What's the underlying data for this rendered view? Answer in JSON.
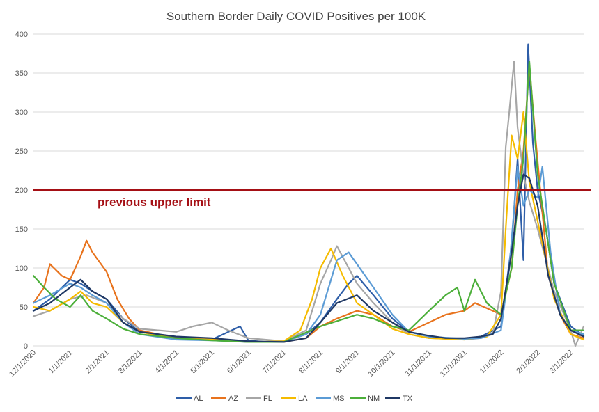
{
  "chart_data": {
    "type": "line",
    "title": "Southern Border Daily COVID Positives per 100K",
    "xlabel": "",
    "ylabel": "",
    "x_type": "date",
    "xlim": [
      "12/1/2020",
      "3/12/2022"
    ],
    "ylim": [
      0,
      400
    ],
    "y_ticks": [
      0,
      50,
      100,
      150,
      200,
      250,
      300,
      350,
      400
    ],
    "x_ticks": [
      "12/1/2020",
      "1/1/2021",
      "2/1/2021",
      "3/1/2021",
      "4/1/2021",
      "5/1/2021",
      "6/1/2021",
      "7/1/2021",
      "8/1/2021",
      "9/1/2021",
      "10/1/2021",
      "11/1/2021",
      "12/1/2021",
      "1/1/2022",
      "2/1/2022",
      "3/1/2022"
    ],
    "grid": true,
    "legend_position": "bottom",
    "reference_line": {
      "y": 200,
      "label": "previous upper limit",
      "color": "#a50f15"
    },
    "series": [
      {
        "name": "AL",
        "color": "#2e5ea8",
        "x": [
          "12/1/2020",
          "12/15/2020",
          "1/1/2021",
          "1/10/2021",
          "1/20/2021",
          "2/1/2021",
          "2/15/2021",
          "3/1/2021",
          "4/1/2021",
          "5/1/2021",
          "5/25/2021",
          "6/1/2021",
          "6/15/2021",
          "7/1/2021",
          "7/20/2021",
          "8/1/2021",
          "8/15/2021",
          "8/25/2021",
          "9/1/2021",
          "9/15/2021",
          "10/1/2021",
          "10/15/2021",
          "11/1/2021",
          "11/15/2021",
          "12/1/2021",
          "12/15/2021",
          "1/1/2022",
          "1/10/2022",
          "1/15/2022",
          "1/20/2022",
          "1/24/2022",
          "1/28/2022",
          "2/1/2022",
          "2/8/2022",
          "2/15/2022",
          "3/1/2022",
          "3/12/2022"
        ],
        "y": [
          45,
          60,
          85,
          80,
          70,
          60,
          35,
          18,
          10,
          8,
          25,
          7,
          5,
          6,
          15,
          30,
          60,
          80,
          90,
          65,
          35,
          18,
          12,
          10,
          9,
          12,
          25,
          130,
          240,
          110,
          387,
          260,
          200,
          150,
          80,
          25,
          13
        ]
      },
      {
        "name": "AZ",
        "color": "#e8731d",
        "x": [
          "12/1/2020",
          "12/10/2020",
          "12/15/2020",
          "12/25/2020",
          "1/1/2021",
          "1/10/2021",
          "1/15/2021",
          "1/20/2021",
          "2/1/2021",
          "2/10/2021",
          "2/20/2021",
          "3/1/2021",
          "4/1/2021",
          "5/1/2021",
          "6/1/2021",
          "7/1/2021",
          "7/20/2021",
          "8/1/2021",
          "8/15/2021",
          "9/1/2021",
          "9/15/2021",
          "10/1/2021",
          "10/15/2021",
          "11/1/2021",
          "11/15/2021",
          "12/1/2021",
          "12/10/2021",
          "12/25/2021",
          "1/1/2022",
          "1/10/2022",
          "1/15/2022",
          "1/20/2022",
          "1/25/2022",
          "1/30/2022",
          "2/10/2022",
          "2/20/2022",
          "3/1/2022",
          "3/12/2022"
        ],
        "y": [
          55,
          75,
          105,
          90,
          85,
          115,
          135,
          120,
          95,
          60,
          35,
          20,
          10,
          8,
          5,
          5,
          10,
          25,
          35,
          45,
          40,
          25,
          18,
          30,
          40,
          45,
          55,
          45,
          40,
          100,
          200,
          250,
          360,
          270,
          90,
          40,
          15,
          10
        ]
      },
      {
        "name": "FL",
        "color": "#a6a6a6",
        "x": [
          "12/1/2020",
          "12/15/2020",
          "1/1/2021",
          "1/15/2021",
          "2/1/2021",
          "2/15/2021",
          "3/1/2021",
          "4/1/2021",
          "4/15/2021",
          "5/1/2021",
          "5/15/2021",
          "6/1/2021",
          "7/1/2021",
          "7/20/2021",
          "8/1/2021",
          "8/10/2021",
          "8/15/2021",
          "8/25/2021",
          "9/1/2021",
          "9/15/2021",
          "10/1/2021",
          "10/15/2021",
          "11/1/2021",
          "12/1/2021",
          "12/15/2021",
          "12/25/2021",
          "1/1/2022",
          "1/5/2022",
          "1/8/2022",
          "1/12/2022",
          "1/15/2022",
          "1/20/2022",
          "1/25/2022",
          "2/1/2022",
          "2/15/2022",
          "3/1/2022",
          "3/5/2022",
          "3/12/2022"
        ],
        "y": [
          38,
          45,
          60,
          65,
          55,
          35,
          22,
          18,
          25,
          30,
          20,
          10,
          6,
          20,
          80,
          110,
          128,
          100,
          80,
          55,
          30,
          15,
          10,
          8,
          10,
          15,
          70,
          255,
          300,
          365,
          280,
          220,
          185,
          150,
          70,
          20,
          0,
          25
        ]
      },
      {
        "name": "LA",
        "color": "#f5bb00",
        "x": [
          "12/1/2020",
          "12/15/2020",
          "1/1/2021",
          "1/10/2021",
          "1/20/2021",
          "2/1/2021",
          "2/15/2021",
          "3/1/2021",
          "4/1/2021",
          "5/1/2021",
          "6/1/2021",
          "7/1/2021",
          "7/15/2021",
          "7/25/2021",
          "8/1/2021",
          "8/10/2021",
          "8/20/2021",
          "9/1/2021",
          "9/15/2021",
          "10/1/2021",
          "10/15/2021",
          "11/1/2021",
          "12/1/2021",
          "12/20/2021",
          "1/1/2022",
          "1/5/2022",
          "1/10/2022",
          "1/15/2022",
          "1/20/2022",
          "1/25/2022",
          "2/1/2022",
          "2/15/2022",
          "3/1/2022",
          "3/12/2022"
        ],
        "y": [
          50,
          45,
          60,
          70,
          55,
          50,
          30,
          18,
          9,
          8,
          5,
          6,
          20,
          60,
          100,
          125,
          90,
          55,
          40,
          22,
          15,
          10,
          8,
          12,
          40,
          150,
          270,
          240,
          300,
          210,
          160,
          60,
          15,
          8
        ]
      },
      {
        "name": "MS",
        "color": "#5b9bd5",
        "x": [
          "12/1/2020",
          "12/15/2020",
          "1/1/2021",
          "1/10/2021",
          "1/20/2021",
          "2/1/2021",
          "2/15/2021",
          "3/1/2021",
          "4/1/2021",
          "5/1/2021",
          "6/1/2021",
          "7/1/2021",
          "7/20/2021",
          "8/1/2021",
          "8/15/2021",
          "8/25/2021",
          "9/1/2021",
          "9/15/2021",
          "10/1/2021",
          "10/15/2021",
          "11/1/2021",
          "12/1/2021",
          "12/15/2021",
          "1/1/2022",
          "1/8/2022",
          "1/15/2022",
          "1/20/2022",
          "1/25/2022",
          "2/1/2022",
          "2/5/2022",
          "2/12/2022",
          "2/20/2022",
          "3/1/2022",
          "3/12/2022"
        ],
        "y": [
          55,
          65,
          80,
          75,
          65,
          55,
          30,
          15,
          8,
          7,
          5,
          5,
          15,
          40,
          110,
          120,
          105,
          75,
          40,
          18,
          12,
          9,
          10,
          20,
          100,
          230,
          180,
          200,
          190,
          230,
          120,
          40,
          20,
          15
        ]
      },
      {
        "name": "NM",
        "color": "#4caf3a",
        "x": [
          "12/1/2020",
          "12/10/2020",
          "12/20/2020",
          "1/1/2021",
          "1/10/2021",
          "1/20/2021",
          "2/1/2021",
          "2/15/2021",
          "3/1/2021",
          "4/1/2021",
          "5/1/2021",
          "6/1/2021",
          "7/1/2021",
          "8/1/2021",
          "9/1/2021",
          "9/15/2021",
          "10/1/2021",
          "10/15/2021",
          "11/1/2021",
          "11/15/2021",
          "11/25/2021",
          "12/1/2021",
          "12/10/2021",
          "12/20/2021",
          "1/1/2022",
          "1/10/2022",
          "1/15/2022",
          "1/20/2022",
          "1/25/2022",
          "2/1/2022",
          "2/15/2022",
          "3/1/2022",
          "3/12/2022"
        ],
        "y": [
          90,
          75,
          60,
          50,
          65,
          45,
          35,
          22,
          15,
          10,
          7,
          5,
          5,
          25,
          40,
          35,
          25,
          20,
          45,
          65,
          75,
          45,
          85,
          55,
          40,
          100,
          180,
          240,
          365,
          220,
          80,
          20,
          20
        ]
      },
      {
        "name": "TX",
        "color": "#1f3864",
        "x": [
          "12/1/2020",
          "12/15/2020",
          "1/1/2021",
          "1/10/2021",
          "1/20/2021",
          "2/1/2021",
          "2/15/2021",
          "3/1/2021",
          "4/1/2021",
          "5/1/2021",
          "6/1/2021",
          "7/1/2021",
          "7/20/2021",
          "8/1/2021",
          "8/15/2021",
          "9/1/2021",
          "9/15/2021",
          "10/1/2021",
          "10/15/2021",
          "11/1/2021",
          "11/15/2021",
          "12/1/2021",
          "12/15/2021",
          "12/25/2021",
          "1/1/2022",
          "1/10/2022",
          "1/15/2022",
          "1/20/2022",
          "1/25/2022",
          "2/1/2022",
          "2/10/2022",
          "2/20/2022",
          "3/1/2022",
          "3/12/2022"
        ],
        "y": [
          45,
          55,
          75,
          85,
          70,
          60,
          30,
          18,
          12,
          10,
          6,
          5,
          10,
          30,
          55,
          65,
          45,
          30,
          18,
          13,
          10,
          10,
          12,
          15,
          35,
          120,
          180,
          220,
          215,
          180,
          90,
          40,
          20,
          12
        ]
      }
    ]
  }
}
